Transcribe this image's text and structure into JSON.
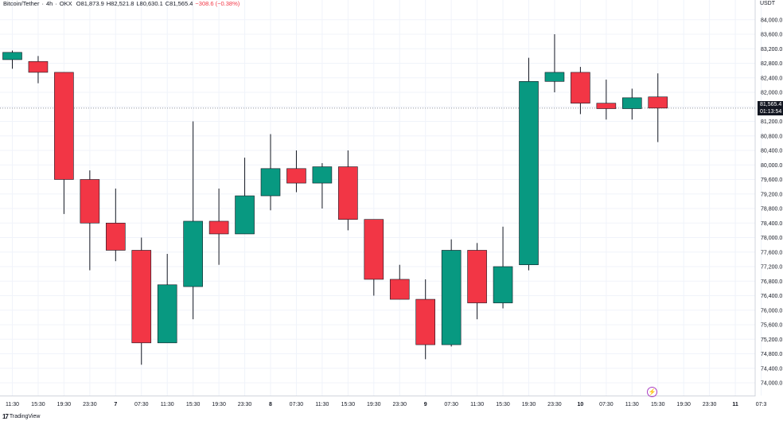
{
  "header": {
    "symbol": "Bitcoin/Tether",
    "sep1": "·",
    "interval": "4h",
    "sep2": "·",
    "exchange": "OKX",
    "open": "O81,873.9",
    "high": "H82,521.8",
    "low": "L80,630.1",
    "close": "C81,565.4",
    "change": "−308.6 (−0.38%)"
  },
  "price_axis": {
    "unit": "USDT",
    "last_price": "81,565.4",
    "countdown": "01:13:54"
  },
  "footer": {
    "brand_mark": "17",
    "brand": "TradingView",
    "event_icon": "lightning-bolt-icon"
  },
  "colors": {
    "up": "#089981",
    "down": "#f23645",
    "grid": "#f0f3fa",
    "price_line": "#9598a1"
  },
  "chart_data": {
    "type": "candlestick",
    "title": "Bitcoin/Tether · 4h · OKX",
    "ylabel": "USDT",
    "ylim": [
      73700,
      84400
    ],
    "y_ticks": [
      74000,
      74400,
      74800,
      75200,
      75600,
      76000,
      76400,
      76800,
      77200,
      77600,
      78000,
      78400,
      78800,
      79200,
      79600,
      80000,
      80400,
      80800,
      81200,
      81600,
      82000,
      82400,
      82800,
      83200,
      83600,
      84000
    ],
    "y_tick_labels": [
      "74,000.0",
      "74,400.0",
      "74,800.0",
      "75,200.0",
      "75,600.0",
      "76,000.0",
      "76,400.0",
      "76,800.0",
      "77,200.0",
      "77,600.0",
      "78,000.0",
      "78,400.0",
      "78,800.0",
      "79,200.0",
      "79,600.0",
      "80,000.0",
      "80,400.0",
      "80,800.0",
      "81,200.0",
      "81,600.0",
      "82,000.0",
      "82,400.0",
      "82,800.0",
      "83,200.0",
      "83,600.0",
      "84,000.0"
    ],
    "x_labels": [
      "11:30",
      "15:30",
      "19:30",
      "23:30",
      "7",
      "07:30",
      "11:30",
      "15:30",
      "19:30",
      "23:30",
      "8",
      "07:30",
      "11:30",
      "15:30",
      "19:30",
      "23:30",
      "9",
      "07:30",
      "11:30",
      "15:30",
      "19:30",
      "23:30",
      "10",
      "07:30",
      "11:30",
      "15:30",
      "19:30",
      "23:30",
      "11",
      "07:3"
    ],
    "x_labels_bold": [
      "7",
      "8",
      "9",
      "10",
      "11"
    ],
    "candles": [
      {
        "o": 82900,
        "h": 83150,
        "l": 82650,
        "c": 83100
      },
      {
        "o": 82850,
        "h": 83000,
        "l": 82250,
        "c": 82550
      },
      {
        "o": 82550,
        "h": 82550,
        "l": 78650,
        "c": 79600
      },
      {
        "o": 79600,
        "h": 79850,
        "l": 77100,
        "c": 78400
      },
      {
        "o": 78400,
        "h": 79350,
        "l": 77350,
        "c": 77650
      },
      {
        "o": 77650,
        "h": 78000,
        "l": 74500,
        "c": 75100
      },
      {
        "o": 75100,
        "h": 77550,
        "l": 75100,
        "c": 76700
      },
      {
        "o": 76650,
        "h": 81200,
        "l": 75750,
        "c": 78450
      },
      {
        "o": 78450,
        "h": 79350,
        "l": 77250,
        "c": 78100
      },
      {
        "o": 78100,
        "h": 80200,
        "l": 78100,
        "c": 79150
      },
      {
        "o": 79150,
        "h": 80850,
        "l": 78750,
        "c": 79900
      },
      {
        "o": 79900,
        "h": 80400,
        "l": 79250,
        "c": 79500
      },
      {
        "o": 79500,
        "h": 80050,
        "l": 78800,
        "c": 79950
      },
      {
        "o": 79950,
        "h": 80400,
        "l": 78200,
        "c": 78500
      },
      {
        "o": 78500,
        "h": 78500,
        "l": 76400,
        "c": 76850
      },
      {
        "o": 76850,
        "h": 77250,
        "l": 76300,
        "c": 76300
      },
      {
        "o": 76300,
        "h": 76850,
        "l": 74650,
        "c": 75050
      },
      {
        "o": 75050,
        "h": 77950,
        "l": 75000,
        "c": 77650
      },
      {
        "o": 77650,
        "h": 77850,
        "l": 75750,
        "c": 76200
      },
      {
        "o": 76200,
        "h": 78300,
        "l": 76050,
        "c": 77200
      },
      {
        "o": 77250,
        "h": 82950,
        "l": 77100,
        "c": 82300
      },
      {
        "o": 82300,
        "h": 83600,
        "l": 82000,
        "c": 82550
      },
      {
        "o": 82550,
        "h": 82700,
        "l": 81400,
        "c": 81700
      },
      {
        "o": 81700,
        "h": 82350,
        "l": 81250,
        "c": 81550
      },
      {
        "o": 81550,
        "h": 82100,
        "l": 81250,
        "c": 81850
      },
      {
        "o": 81873.9,
        "h": 82521.8,
        "l": 80630.1,
        "c": 81565.4
      }
    ]
  }
}
